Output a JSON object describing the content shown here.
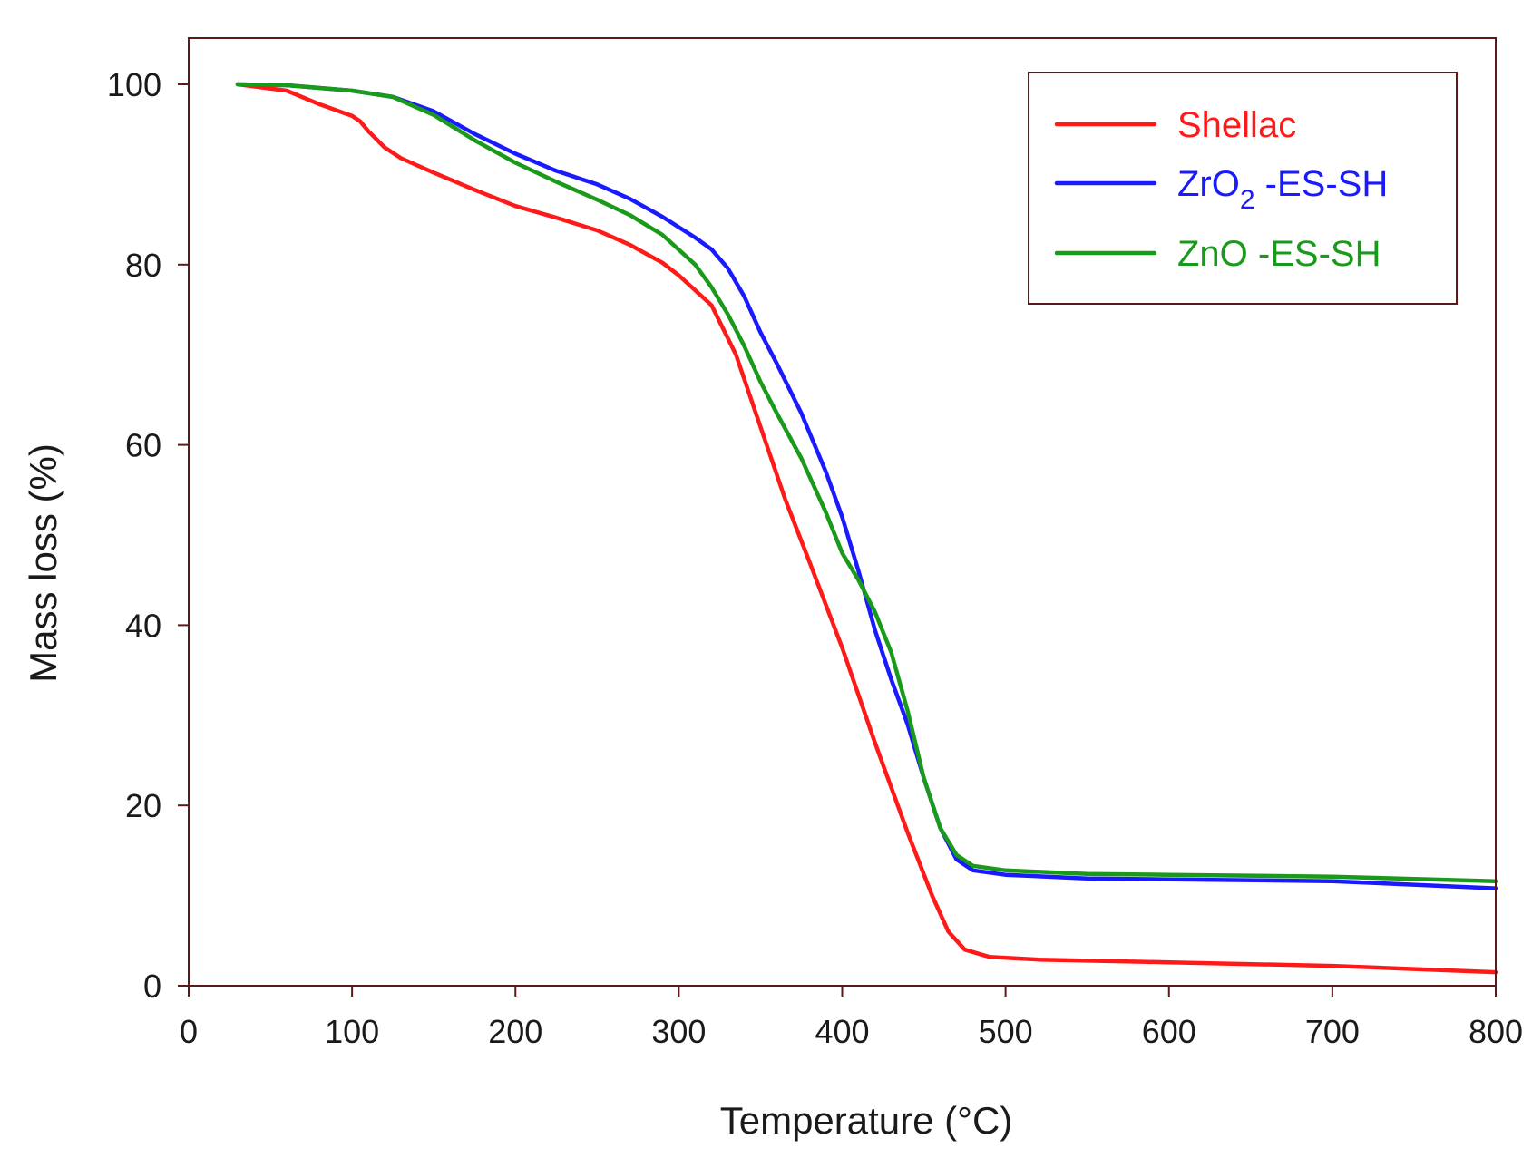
{
  "chart_data": {
    "type": "line",
    "title": "",
    "xlabel": "Temperature (°C)",
    "ylabel": "Mass loss (%)",
    "xlim": [
      0,
      800
    ],
    "ylim": [
      0,
      100
    ],
    "xticks": [
      "0",
      "100",
      "200",
      "300",
      "400",
      "500",
      "600",
      "700",
      "800"
    ],
    "yticks": [
      "0",
      "20",
      "40",
      "60",
      "80",
      "100"
    ],
    "grid": false,
    "legend_position": "top-right",
    "series": [
      {
        "name": "Shellac",
        "legend": {
          "main": "Shellac",
          "sub": "",
          "suffix": ""
        },
        "color": "#ff1a1a",
        "x": [
          30,
          60,
          80,
          100,
          105,
          110,
          120,
          130,
          150,
          175,
          200,
          225,
          250,
          270,
          290,
          300,
          320,
          335,
          350,
          365,
          380,
          400,
          420,
          440,
          455,
          465,
          475,
          490,
          520,
          600,
          700,
          800
        ],
        "y": [
          100,
          99.3,
          97.8,
          96.5,
          95.9,
          94.8,
          93.0,
          91.8,
          90.2,
          88.3,
          86.5,
          85.2,
          83.8,
          82.2,
          80.2,
          78.8,
          75.5,
          70.0,
          62.0,
          54.0,
          47.0,
          37.5,
          27.0,
          17.0,
          10.0,
          6.0,
          4.0,
          3.2,
          2.9,
          2.6,
          2.2,
          1.5
        ]
      },
      {
        "name": "ZrO2 -ES-SH",
        "legend": {
          "main": "ZrO",
          "sub": "2",
          "suffix": " -ES-SH"
        },
        "color": "#1a1aff",
        "x": [
          30,
          60,
          100,
          125,
          150,
          175,
          200,
          225,
          250,
          270,
          290,
          310,
          320,
          330,
          340,
          350,
          360,
          375,
          390,
          400,
          410,
          420,
          430,
          440,
          450,
          460,
          470,
          480,
          500,
          550,
          600,
          700,
          800
        ],
        "y": [
          100,
          99.9,
          99.3,
          98.6,
          97.0,
          94.5,
          92.3,
          90.4,
          88.9,
          87.3,
          85.3,
          83.0,
          81.7,
          79.6,
          76.5,
          72.5,
          69.0,
          63.5,
          57.0,
          52.0,
          46.0,
          39.5,
          34.0,
          29.0,
          23.0,
          17.5,
          14.0,
          12.8,
          12.3,
          11.9,
          11.8,
          11.6,
          10.8
        ]
      },
      {
        "name": "ZnO -ES-SH",
        "legend": {
          "main": "ZnO",
          "sub": "",
          "suffix": " -ES-SH"
        },
        "color": "#1a9a1a",
        "x": [
          30,
          60,
          100,
          125,
          150,
          175,
          200,
          225,
          250,
          270,
          290,
          310,
          320,
          330,
          340,
          350,
          360,
          375,
          390,
          400,
          410,
          420,
          430,
          440,
          450,
          460,
          470,
          480,
          500,
          550,
          600,
          700,
          800
        ],
        "y": [
          100,
          99.9,
          99.3,
          98.6,
          96.6,
          93.8,
          91.3,
          89.2,
          87.2,
          85.5,
          83.3,
          80.0,
          77.5,
          74.5,
          71.0,
          67.0,
          63.5,
          58.5,
          52.5,
          48.0,
          45.0,
          41.5,
          37.0,
          30.5,
          23.0,
          17.5,
          14.5,
          13.3,
          12.8,
          12.4,
          12.3,
          12.1,
          11.6
        ]
      }
    ]
  }
}
